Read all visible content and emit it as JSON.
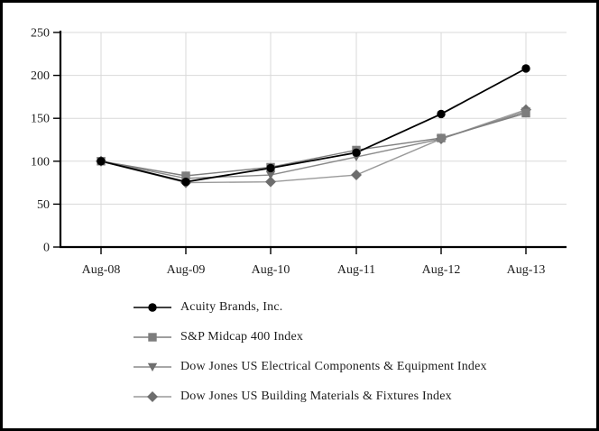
{
  "chart_data": {
    "type": "line",
    "title": "",
    "xlabel": "",
    "ylabel": "",
    "x_labels": [
      "Aug-08",
      "Aug-09",
      "Aug-10",
      "Aug-11",
      "Aug-12",
      "Aug-13"
    ],
    "ylim": [
      0,
      250
    ],
    "ytick_step": 50,
    "ytick_labels": [
      "0",
      "50",
      "100",
      "150",
      "200",
      "250"
    ],
    "grid": true,
    "legend_position": "bottom-left",
    "series": [
      {
        "name": "Acuity Brands, Inc.",
        "marker": "circle",
        "line_color": "#000000",
        "marker_color": "#000000",
        "values": [
          100,
          76,
          92,
          110,
          155,
          208
        ]
      },
      {
        "name": "S&P Midcap 400 Index",
        "marker": "square",
        "line_color": "#7f7f7f",
        "marker_color": "#7d7d7d",
        "values": [
          100,
          83,
          93,
          113,
          127,
          156
        ]
      },
      {
        "name": "Dow Jones US Electrical Components & Equipment Index",
        "marker": "triangle-down",
        "line_color": "#8a8a8a",
        "marker_color": "#6f6f6f",
        "values": [
          100,
          80,
          84,
          105,
          126,
          158
        ]
      },
      {
        "name": "Dow Jones US Building Materials & Fixtures Index",
        "marker": "diamond",
        "line_color": "#9a9a9a",
        "marker_color": "#6d6d6d",
        "values": [
          100,
          75,
          76,
          84,
          126,
          160
        ]
      }
    ]
  },
  "colors": {
    "grid": "#d9d9d9",
    "axis": "#000000",
    "tick_text": "#1c1c1c",
    "background": "#ffffff",
    "border": "#000000"
  }
}
